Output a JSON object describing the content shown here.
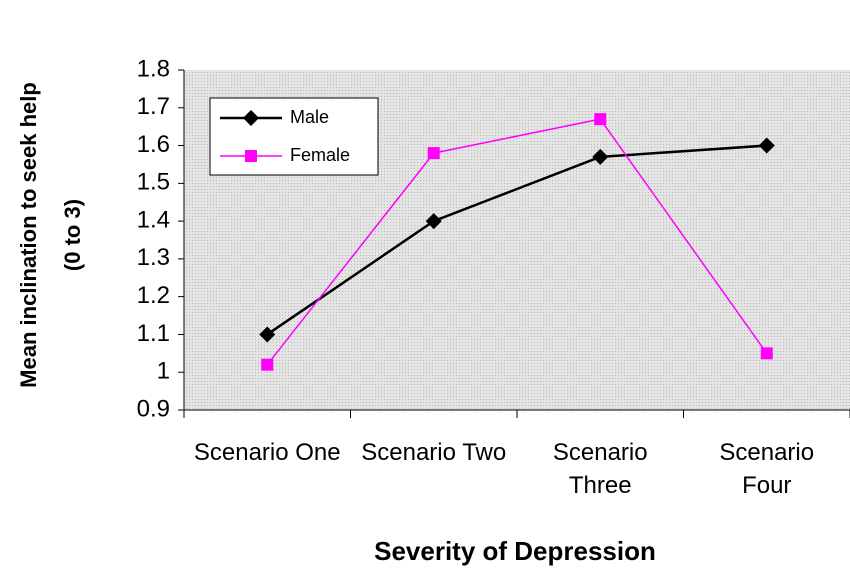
{
  "chart_data": {
    "type": "line",
    "y_label": [
      "Mean inclination to seek help",
      "(0 to 3)"
    ],
    "x_label": "Severity of Depression",
    "categories": [
      "Scenario One",
      "Scenario Two",
      "Scenario Three",
      "Scenario Four"
    ],
    "series": [
      {
        "name": "Male",
        "color": "#000000",
        "marker": "diamond",
        "values": [
          1.1,
          1.4,
          1.57,
          1.6
        ]
      },
      {
        "name": "Female",
        "color": "#ff00ff",
        "marker": "square",
        "values": [
          1.02,
          1.58,
          1.67,
          1.05
        ]
      }
    ],
    "ylim": [
      0.9,
      1.8
    ],
    "yticks": [
      0.9,
      1,
      1.1,
      1.2,
      1.3,
      1.4,
      1.5,
      1.6,
      1.7,
      1.8
    ],
    "legend": "upper left"
  }
}
